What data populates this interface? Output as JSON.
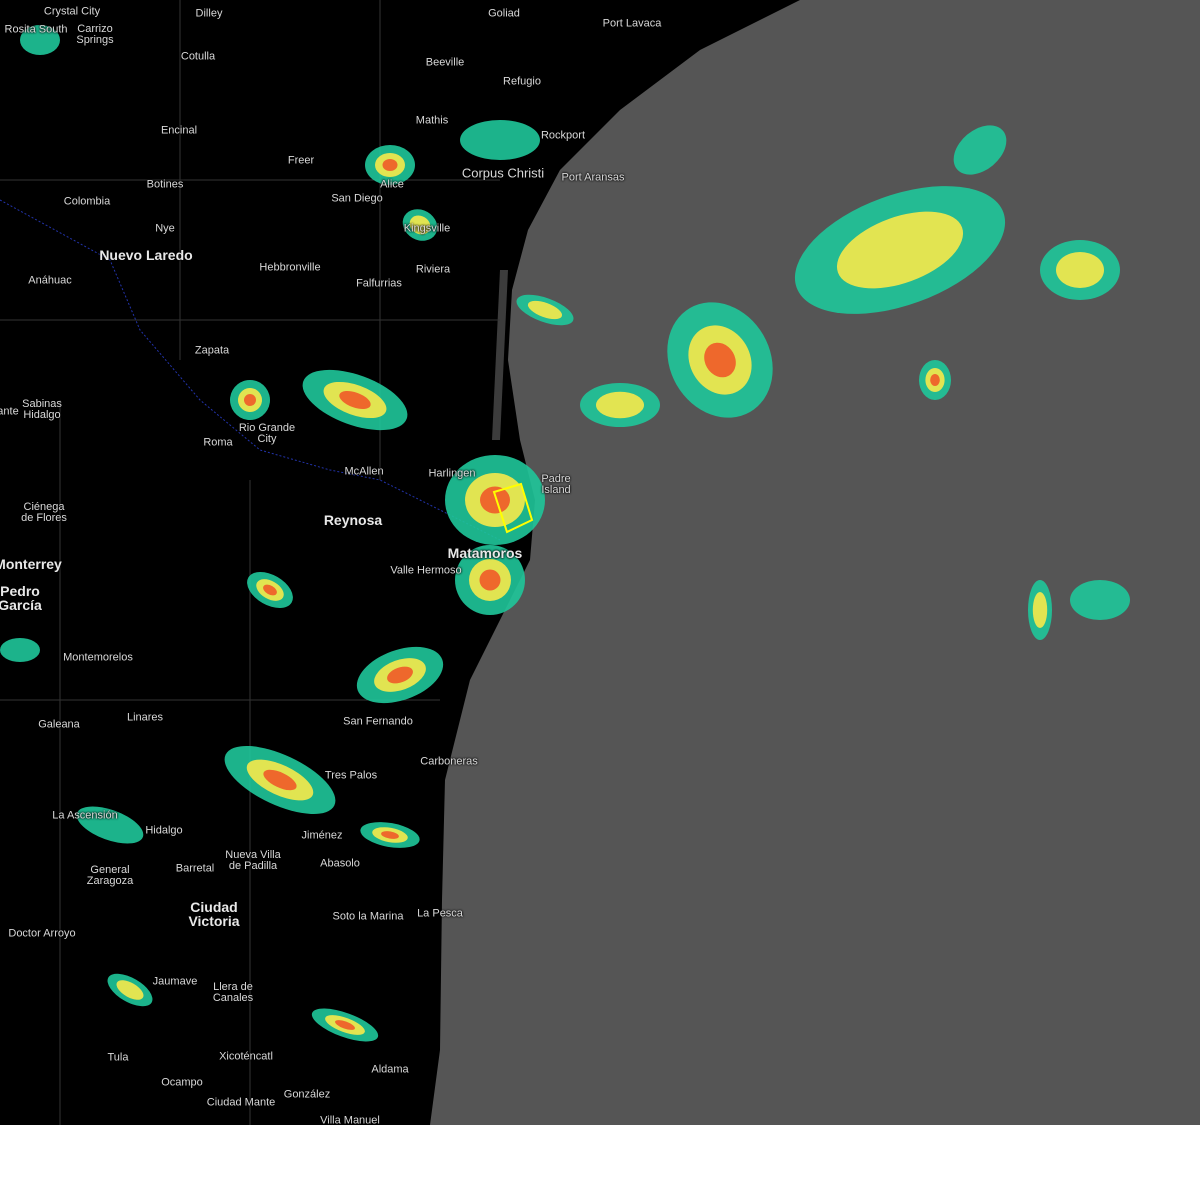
{
  "map": {
    "colors": {
      "land": "#000000",
      "ocean": "#555555",
      "radar_light": "#1fc79a",
      "radar_mid": "#f7e94a",
      "radar_high": "#f05a28",
      "warning_polygon": "#ffff00"
    },
    "cities": [
      {
        "name": "Crystal City",
        "size": "small"
      },
      {
        "name": "Dilley",
        "size": "small"
      },
      {
        "name": "Goliad",
        "size": "small"
      },
      {
        "name": "Port Lavaca",
        "size": "small"
      },
      {
        "name": "Rosita South",
        "size": "small"
      },
      {
        "name": "Carrizo\nSprings",
        "size": "small"
      },
      {
        "name": "Cotulla",
        "size": "small"
      },
      {
        "name": "Beeville",
        "size": "small"
      },
      {
        "name": "Refugio",
        "size": "small"
      },
      {
        "name": "Mathis",
        "size": "small"
      },
      {
        "name": "Rockport",
        "size": "small"
      },
      {
        "name": "Encinal",
        "size": "small"
      },
      {
        "name": "Freer",
        "size": "small"
      },
      {
        "name": "Alice",
        "size": "small"
      },
      {
        "name": "Corpus Christi",
        "size": "mid"
      },
      {
        "name": "Port Aransas",
        "size": "small"
      },
      {
        "name": "Botines",
        "size": "small"
      },
      {
        "name": "San Diego",
        "size": "small"
      },
      {
        "name": "Colombia",
        "size": "small"
      },
      {
        "name": "Nye",
        "size": "small"
      },
      {
        "name": "Kingsville",
        "size": "small"
      },
      {
        "name": "Nuevo Laredo",
        "size": "big"
      },
      {
        "name": "Hebbronville",
        "size": "small"
      },
      {
        "name": "Riviera",
        "size": "small"
      },
      {
        "name": "Anáhuac",
        "size": "small"
      },
      {
        "name": "Falfurrias",
        "size": "small"
      },
      {
        "name": "Zapata",
        "size": "small"
      },
      {
        "name": "Sabinas\nHidalgo",
        "size": "small"
      },
      {
        "name": "Roma",
        "size": "small"
      },
      {
        "name": "Rio Grande\nCity",
        "size": "small"
      },
      {
        "name": "McAllen",
        "size": "small"
      },
      {
        "name": "Harlingen",
        "size": "small"
      },
      {
        "name": "Padre\nIsland",
        "size": "small"
      },
      {
        "name": "Reynosa",
        "size": "big"
      },
      {
        "name": "Ciénega\nde Flores",
        "size": "small"
      },
      {
        "name": "Matamoros",
        "size": "big"
      },
      {
        "name": "Valle Hermoso",
        "size": "small"
      },
      {
        "name": "Monterrey",
        "size": "big"
      },
      {
        "name": "Pedro\nGarcía",
        "size": "big"
      },
      {
        "name": "Montemorelos",
        "size": "small"
      },
      {
        "name": "Linares",
        "size": "small"
      },
      {
        "name": "San Fernando",
        "size": "small"
      },
      {
        "name": "Galeana",
        "size": "small"
      },
      {
        "name": "Tres Palos",
        "size": "small"
      },
      {
        "name": "Carboneras",
        "size": "small"
      },
      {
        "name": "La Ascensión",
        "size": "small"
      },
      {
        "name": "Hidalgo",
        "size": "small"
      },
      {
        "name": "Jiménez",
        "size": "small"
      },
      {
        "name": "Abasolo",
        "size": "small"
      },
      {
        "name": "General\nZaragoza",
        "size": "small"
      },
      {
        "name": "Barretal",
        "size": "small"
      },
      {
        "name": "Nueva Villa\nde Padilla",
        "size": "small"
      },
      {
        "name": "Ciudad\nVictoria",
        "size": "big"
      },
      {
        "name": "Soto la Marina",
        "size": "small"
      },
      {
        "name": "La Pesca",
        "size": "small"
      },
      {
        "name": "Doctor Arroyo",
        "size": "small"
      },
      {
        "name": "Jaumave",
        "size": "small"
      },
      {
        "name": "Llera de\nCanales",
        "size": "small"
      },
      {
        "name": "Xicoténcatl",
        "size": "small"
      },
      {
        "name": "Tula",
        "size": "small"
      },
      {
        "name": "Aldama",
        "size": "small"
      },
      {
        "name": "Ocampo",
        "size": "small"
      },
      {
        "name": "Ciudad Mante",
        "size": "small"
      },
      {
        "name": "González",
        "size": "small"
      },
      {
        "name": "Villa Manuel",
        "size": "small"
      },
      {
        "name": "ante",
        "size": "small"
      }
    ]
  }
}
